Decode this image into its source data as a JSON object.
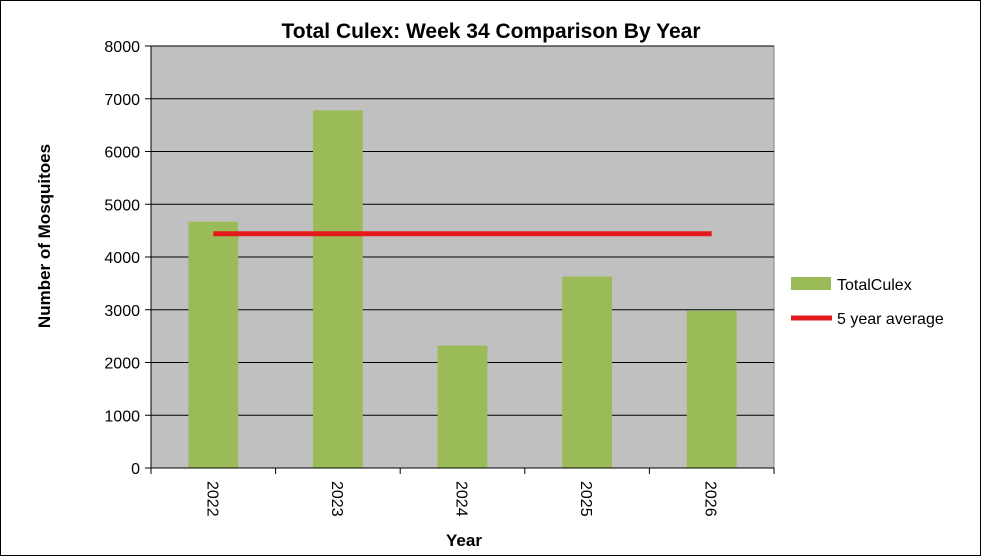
{
  "chart_data": {
    "type": "bar",
    "title": "Total Culex: Week 34 Comparison By Year",
    "xlabel": "Year",
    "ylabel": "Number of Mosquitoes",
    "categories": [
      "2022",
      "2023",
      "2024",
      "2025",
      "2026"
    ],
    "series": [
      {
        "name": "TotalCulex",
        "type": "bar",
        "color": "#9BBB59",
        "values": [
          4670,
          6780,
          2320,
          3630,
          2980
        ]
      },
      {
        "name": "5 year average",
        "type": "line",
        "color": "#E31A1C",
        "values": [
          4440,
          4440,
          4440,
          4440,
          4440
        ]
      }
    ],
    "ylim": [
      0,
      8000
    ],
    "yticks": [
      0,
      1000,
      2000,
      3000,
      4000,
      5000,
      6000,
      7000,
      8000
    ],
    "grid": true,
    "plot_background": "#C0C0C0",
    "legend_position": "right"
  }
}
